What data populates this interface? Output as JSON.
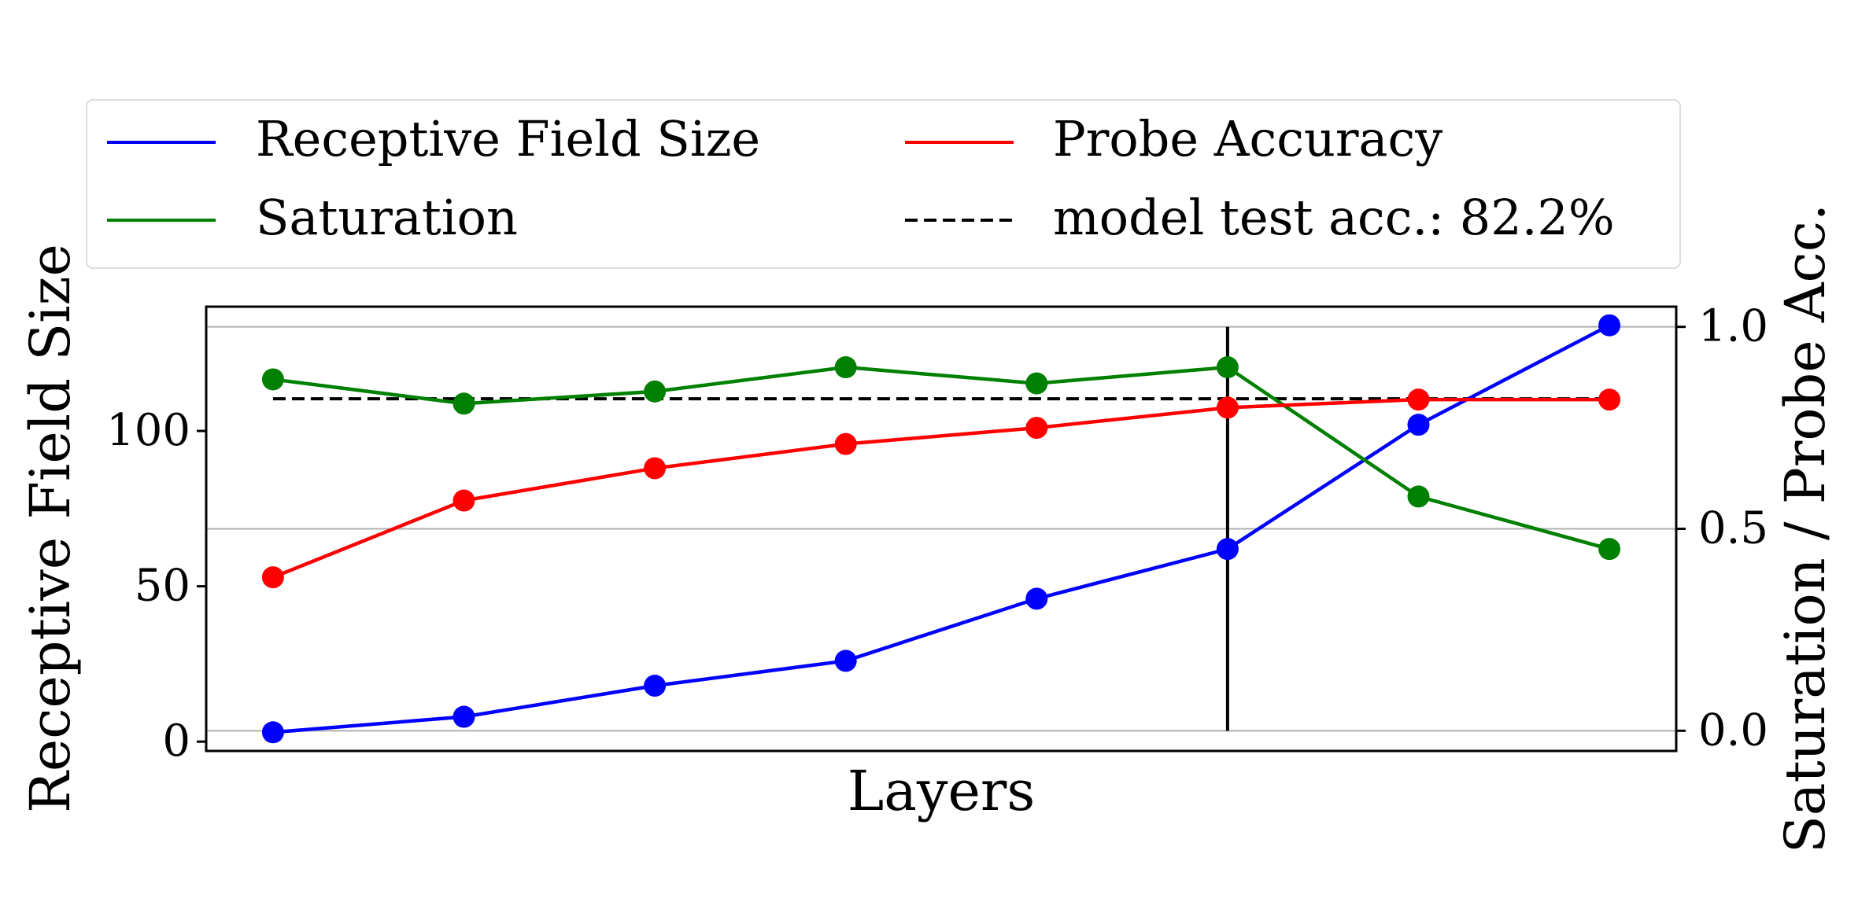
{
  "chart_data": {
    "type": "line",
    "xlabel": "Layers",
    "ylabel_left": "Receptive Field Size",
    "ylabel_right": "Saturation / Probe Acc.",
    "x": [
      1,
      2,
      3,
      4,
      5,
      6,
      7,
      8
    ],
    "xlim": [
      0.65,
      8.35
    ],
    "ylim_left": [
      -3,
      140
    ],
    "ylim_right": [
      -0.05,
      1.05
    ],
    "yticks_left": [
      0,
      50,
      100
    ],
    "yticks_right": [
      "0.0",
      "0.5",
      "1.0"
    ],
    "grid": "horizontal gridlines at right-axis ticks",
    "legend_position": "top (above plot), 2 columns",
    "vertical_marker_x": 6,
    "series": [
      {
        "name": "Receptive Field Size",
        "axis": "left",
        "color": "#0000ff",
        "values": [
          3,
          8,
          18,
          26,
          46,
          62,
          102,
          134
        ]
      },
      {
        "name": "Saturation",
        "axis": "right",
        "color": "#008000",
        "values": [
          0.87,
          0.81,
          0.84,
          0.9,
          0.86,
          0.9,
          0.58,
          0.45
        ]
      },
      {
        "name": "Probe Accuracy",
        "axis": "right",
        "color": "#ff0000",
        "values": [
          0.38,
          0.57,
          0.65,
          0.71,
          0.75,
          0.8,
          0.82,
          0.82
        ]
      }
    ],
    "reference_line": {
      "label": "model test acc.: 82.2%",
      "axis": "right",
      "value": 0.822,
      "style": "dashed",
      "color": "#000000",
      "x_from": 1,
      "x_to": 8
    }
  }
}
